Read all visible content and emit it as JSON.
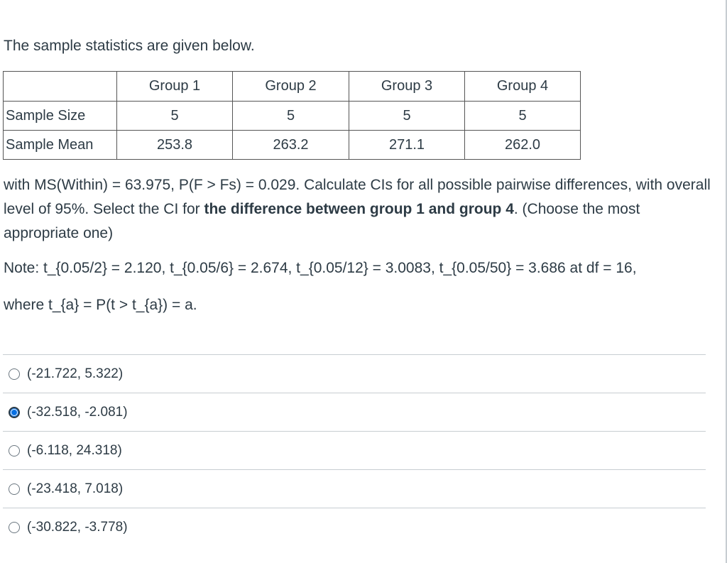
{
  "intro": "The sample statistics are given below.",
  "table": {
    "headers": [
      "",
      "Group 1",
      "Group 2",
      "Group 3",
      "Group 4"
    ],
    "rows": [
      {
        "label": "Sample Size",
        "values": [
          "5",
          "5",
          "5",
          "5"
        ]
      },
      {
        "label": "Sample Mean",
        "values": [
          "253.8",
          "263.2",
          "271.1",
          "262.0"
        ]
      }
    ]
  },
  "question": {
    "part1": "with MS(Within) = 63.975, P(F > Fs) = 0.029. Calculate CIs for all possible pairwise differences, with overall level of 95%. Select the CI for ",
    "bold": "the difference between group 1 and group 4",
    "part2": ".  (Choose the most appropriate one)"
  },
  "note": {
    "line1": "Note: t_{0.05/2} = 2.120, t_{0.05/6} = 2.674, t_{0.05/12} = 3.0083, t_{0.05/50} = 3.686 at df = 16,",
    "line2": "where t_{a} = P(t > t_{a}) = a."
  },
  "options": [
    {
      "label": "(-21.722, 5.322)",
      "selected": false
    },
    {
      "label": "(-32.518, -2.081)",
      "selected": true
    },
    {
      "label": "(-6.118, 24.318)",
      "selected": false
    },
    {
      "label": "(-23.418, 7.018)",
      "selected": false
    },
    {
      "label": "(-30.822, -3.778)",
      "selected": false
    }
  ],
  "colors": {
    "accent": "#0770e3",
    "text": "#2d3b45",
    "divider": "#c7cdd1"
  }
}
